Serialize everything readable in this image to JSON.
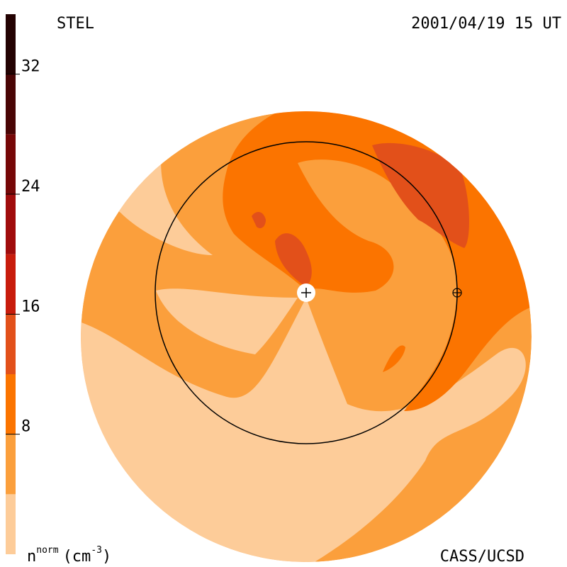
{
  "header": {
    "left": "STEL",
    "right": "2001/04/19 15 UT"
  },
  "footer": {
    "right": "CASS/UCSD"
  },
  "colorbar": {
    "label": {
      "symbol": "n",
      "superscript": "norm",
      "unit_open": "(cm",
      "unit_exponent": "-3",
      "unit_close": ")"
    },
    "range": [
      0,
      36
    ],
    "ticks": [
      8,
      16,
      24,
      32
    ],
    "bands": [
      {
        "from": 0,
        "to": 4,
        "color": "#fdcc99"
      },
      {
        "from": 4,
        "to": 8,
        "color": "#fb9f3c"
      },
      {
        "from": 8,
        "to": 12,
        "color": "#fb7400"
      },
      {
        "from": 12,
        "to": 16,
        "color": "#e2501a"
      },
      {
        "from": 16,
        "to": 20,
        "color": "#c81c0c"
      },
      {
        "from": 20,
        "to": 24,
        "color": "#a00c0c"
      },
      {
        "from": 24,
        "to": 28,
        "color": "#760707"
      },
      {
        "from": 28,
        "to": 32,
        "color": "#4a0505"
      },
      {
        "from": 32,
        "to": 36,
        "color": "#230202"
      }
    ]
  }
}
